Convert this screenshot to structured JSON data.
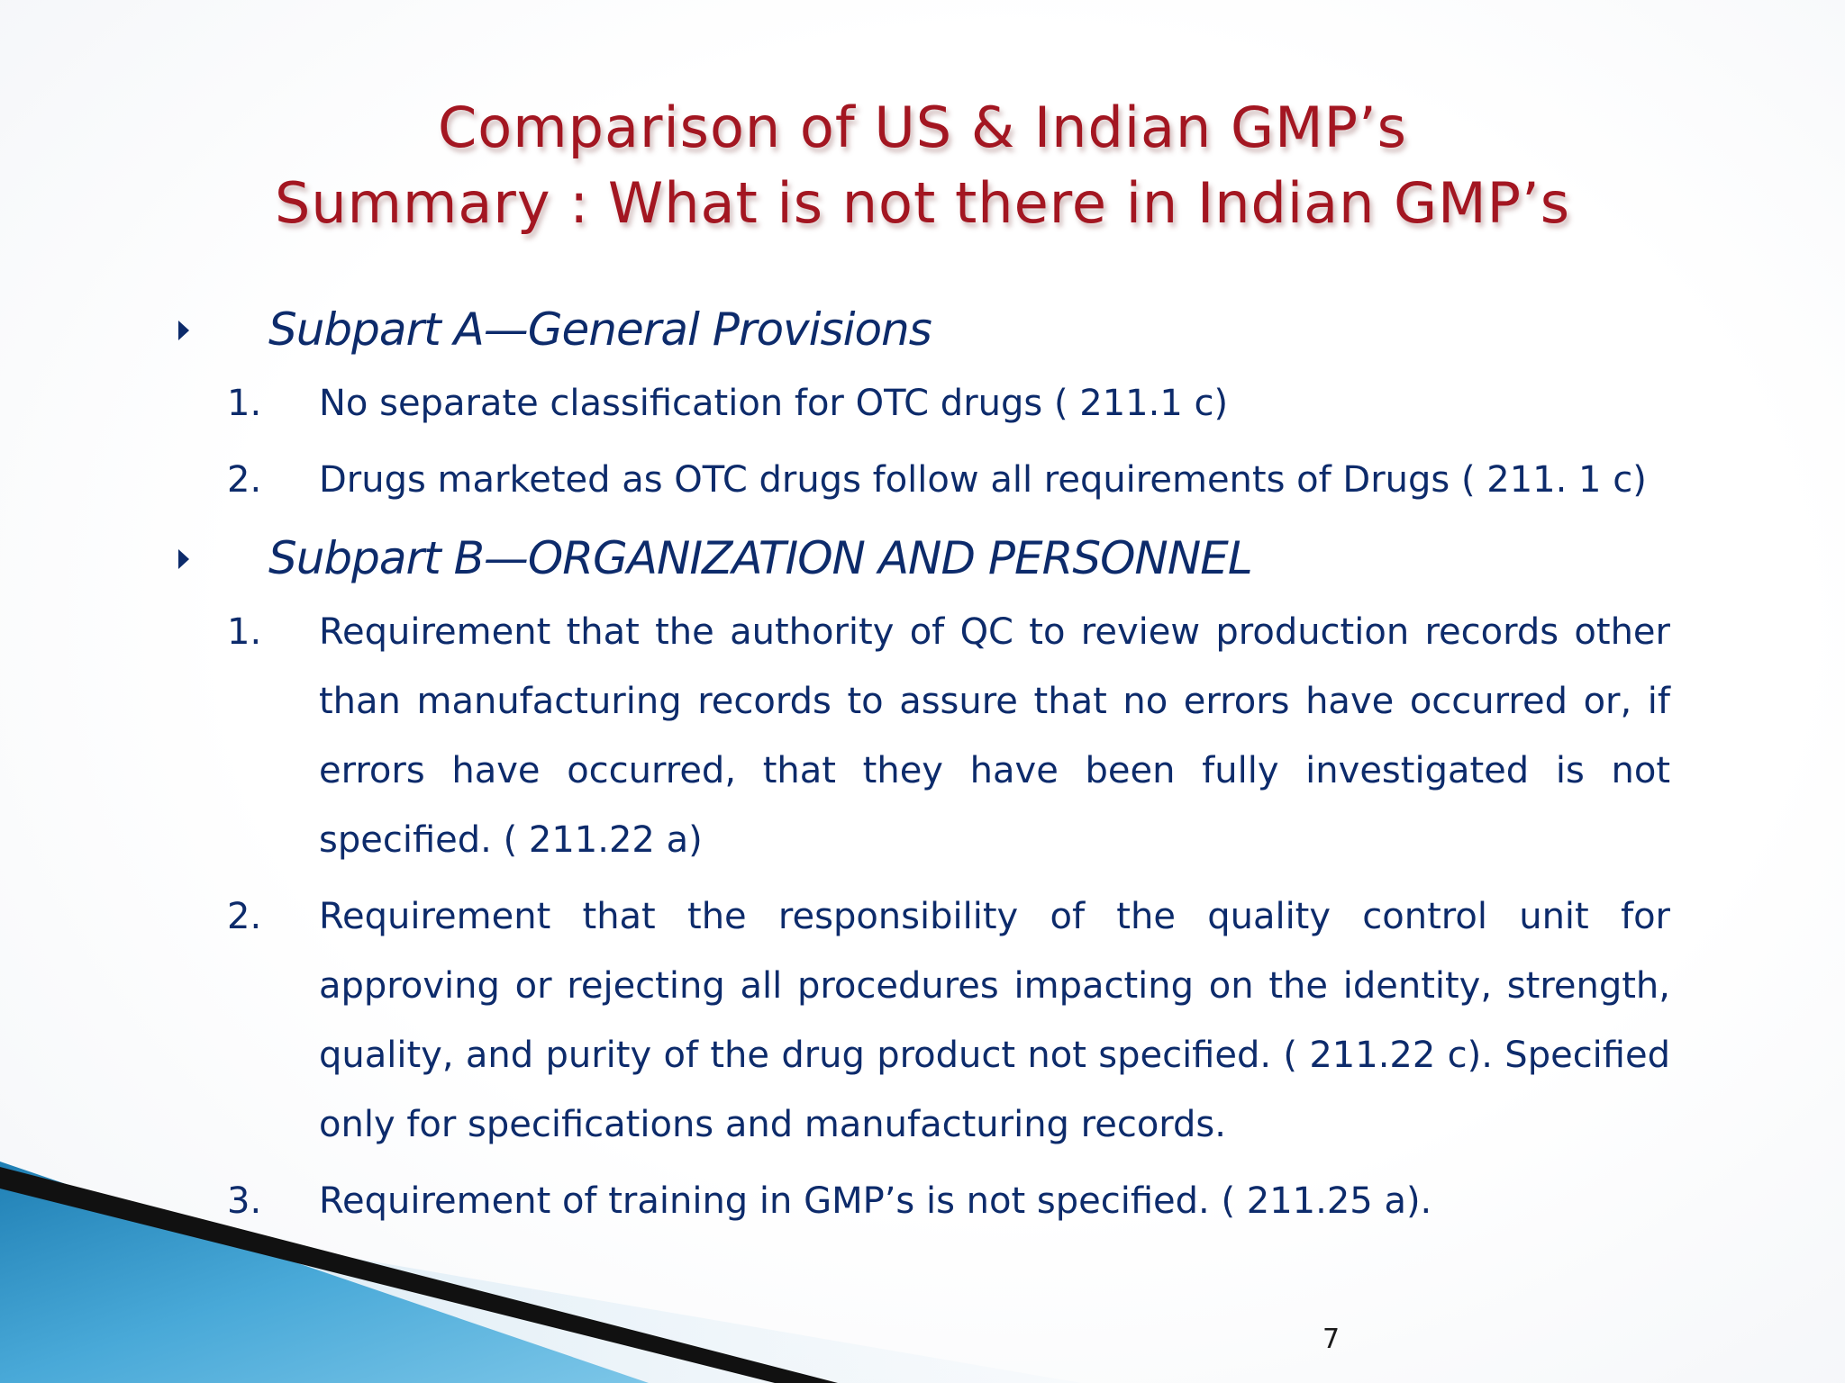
{
  "title": {
    "line1": "Comparison of US & Indian GMP’s",
    "line2": "Summary : What is not there in Indian GMP’s"
  },
  "sections": [
    {
      "heading": "Subpart A—General Provisions",
      "items": [
        {
          "num": "1.",
          "text": "No separate classification for OTC drugs ( 211.1 c)"
        },
        {
          "num": "2.",
          "text": "Drugs marketed as OTC drugs follow all requirements of Drugs ( 211. 1 c)"
        }
      ]
    },
    {
      "heading": "Subpart B—ORGANIZATION AND PERSONNEL",
      "items": [
        {
          "num": "1.",
          "text": "Requirement that the authority of QC to review production records other than manufacturing records to assure that no errors have occurred or, if errors have occurred, that they have been fully investigated is not specified.   ( 211.22 a)"
        },
        {
          "num": "2.",
          "text": "Requirement that the responsibility of the quality control unit for approving or rejecting all procedures impacting on the identity, strength, quality, and purity of the drug product not specified. ( 211.22 c). Specified only for specifications and manufacturing records."
        },
        {
          "num": "3.",
          "text": "Requirement of training in GMP’s is not specified. ( 211.25 a)."
        }
      ]
    }
  ],
  "page_number": "7",
  "colors": {
    "title": "#a31621",
    "body": "#0d2b6b",
    "accent_blue": "#2b8fc4",
    "accent_dark": "#111111"
  }
}
